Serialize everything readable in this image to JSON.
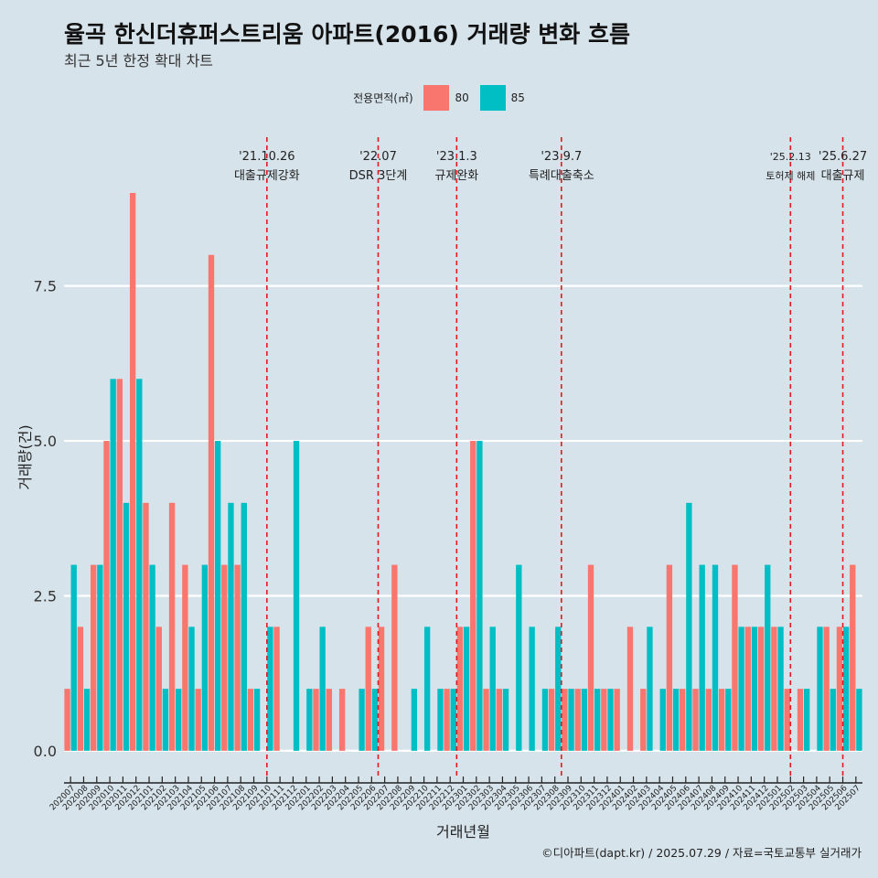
{
  "title": "율곡 한신더휴퍼스트리움 아파트(2016) 거래량 변화 흐름",
  "subtitle": "최근 5년 한정 확대 차트",
  "legend_title": "전용면적(㎡)",
  "caption": "©디아파트(dapt.kr) / 2025.07.29 / 자료=국토교통부 실거래가",
  "colors": {
    "80": "#f8766d",
    "85": "#00bfc4",
    "event": "#e31a1c",
    "grid": "#ffffff"
  },
  "chart_data": {
    "type": "bar",
    "title": "율곡 한신더휴퍼스트리움 아파트(2016) 거래량 변화 흐름",
    "xlabel": "거래년월",
    "ylabel": "거래량(건)",
    "ylim": [
      -0.4,
      9.9
    ],
    "yticks": [
      0.0,
      2.5,
      5.0,
      7.5
    ],
    "ytick_labels": [
      "0.0",
      "2.5",
      "5.0",
      "7.5"
    ],
    "legend": [
      {
        "name": "80",
        "color": "#f8766d"
      },
      {
        "name": "85",
        "color": "#00bfc4"
      }
    ],
    "categories": [
      "202007",
      "202008",
      "202009",
      "202010",
      "202011",
      "202012",
      "202101",
      "202102",
      "202103",
      "202104",
      "202105",
      "202106",
      "202107",
      "202108",
      "202109",
      "202110",
      "202111",
      "202112",
      "202201",
      "202202",
      "202203",
      "202204",
      "202205",
      "202206",
      "202207",
      "202208",
      "202209",
      "202210",
      "202211",
      "202212",
      "202301",
      "202302",
      "202303",
      "202304",
      "202305",
      "202306",
      "202307",
      "202308",
      "202309",
      "202310",
      "202311",
      "202312",
      "202401",
      "202402",
      "202403",
      "202404",
      "202405",
      "202406",
      "202407",
      "202408",
      "202409",
      "202410",
      "202411",
      "202412",
      "202501",
      "202502",
      "202503",
      "202504",
      "202505",
      "202506",
      "202507"
    ],
    "series": [
      {
        "name": "80",
        "values": [
          1,
          2,
          3,
          5,
          6,
          9,
          4,
          2,
          4,
          3,
          1,
          8,
          3,
          3,
          1,
          0,
          2,
          0,
          0,
          1,
          1,
          1,
          0,
          2,
          2,
          3,
          0,
          0,
          0,
          1,
          2,
          5,
          1,
          1,
          0,
          0,
          0,
          1,
          1,
          1,
          3,
          1,
          1,
          2,
          1,
          0,
          3,
          1,
          1,
          1,
          1,
          3,
          2,
          2,
          2,
          1,
          1,
          0,
          2,
          2,
          3
        ]
      },
      {
        "name": "85",
        "values": [
          3,
          1,
          3,
          6,
          4,
          6,
          3,
          1,
          1,
          2,
          3,
          5,
          4,
          4,
          1,
          2,
          0,
          5,
          1,
          2,
          0,
          0,
          1,
          1,
          0,
          0,
          1,
          2,
          1,
          1,
          2,
          5,
          2,
          1,
          3,
          2,
          1,
          2,
          1,
          1,
          1,
          1,
          0,
          0,
          2,
          1,
          1,
          4,
          3,
          3,
          1,
          2,
          2,
          3,
          2,
          0,
          1,
          2,
          1,
          2,
          1
        ]
      }
    ],
    "events": [
      {
        "date": "'21.10.26",
        "label": "대출규제강화",
        "at": "202110",
        "offset": 0.5,
        "small": false
      },
      {
        "date": "'22.07",
        "label": "DSR 3단계",
        "at": "202207",
        "offset": 0.0,
        "small": false
      },
      {
        "date": "'23.1.3",
        "label": "규제완화",
        "at": "202301",
        "offset": 0.0,
        "small": false
      },
      {
        "date": "'23.9.7",
        "label": "특례대출축소",
        "at": "202309",
        "offset": 0.0,
        "small": false
      },
      {
        "date": "'25.2.13",
        "label": "토허제 해제",
        "at": "202502",
        "offset": 0.5,
        "small": true
      },
      {
        "date": "'25.6.27",
        "label": "대출규제",
        "at": "202506",
        "offset": 0.5,
        "small": false
      }
    ]
  }
}
